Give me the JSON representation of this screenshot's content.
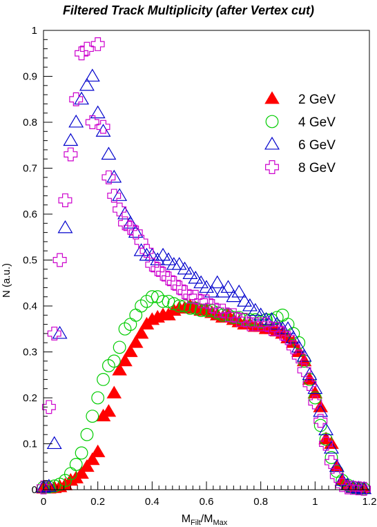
{
  "chart_data": {
    "type": "scatter",
    "title": "Filtered Track Multiplicity (after Vertex cut)",
    "xlabel": {
      "main": "M",
      "sub1": "Filt",
      "mid": "/M",
      "sub2": "Max"
    },
    "ylabel": "N (a.u.)",
    "xlim": [
      0,
      1.2
    ],
    "ylim": [
      0,
      1
    ],
    "xticks": [
      "0",
      "0.2",
      "0.4",
      "0.6",
      "0.8",
      "1",
      "1.2"
    ],
    "yticks": [
      "0",
      "0.1",
      "0.2",
      "0.3",
      "0.4",
      "0.5",
      "0.6",
      "0.7",
      "0.8",
      "0.9",
      "1"
    ],
    "legend_position": "top-right",
    "grid": false,
    "series": [
      {
        "name": "2 GeV",
        "marker": "filled-triangle",
        "color": "#ff0000",
        "x": [
          0.0,
          0.02,
          0.04,
          0.06,
          0.08,
          0.1,
          0.12,
          0.14,
          0.16,
          0.18,
          0.2,
          0.22,
          0.24,
          0.26,
          0.28,
          0.3,
          0.32,
          0.34,
          0.36,
          0.38,
          0.4,
          0.42,
          0.44,
          0.46,
          0.48,
          0.5,
          0.52,
          0.54,
          0.56,
          0.58,
          0.6,
          0.62,
          0.64,
          0.66,
          0.68,
          0.7,
          0.72,
          0.74,
          0.76,
          0.78,
          0.8,
          0.82,
          0.84,
          0.86,
          0.88,
          0.9,
          0.92,
          0.94,
          0.96,
          0.98,
          1.0,
          1.02,
          1.04,
          1.06,
          1.08,
          1.1,
          1.12,
          1.14,
          1.16,
          1.18
        ],
        "y": [
          0.003,
          0.003,
          0.004,
          0.006,
          0.01,
          0.02,
          0.025,
          0.035,
          0.05,
          0.065,
          0.082,
          0.16,
          0.17,
          0.21,
          0.26,
          0.28,
          0.3,
          0.32,
          0.34,
          0.36,
          0.37,
          0.375,
          0.38,
          0.38,
          0.39,
          0.395,
          0.395,
          0.4,
          0.395,
          0.39,
          0.39,
          0.385,
          0.38,
          0.375,
          0.38,
          0.37,
          0.365,
          0.36,
          0.36,
          0.355,
          0.355,
          0.35,
          0.35,
          0.345,
          0.34,
          0.33,
          0.32,
          0.3,
          0.28,
          0.24,
          0.21,
          0.18,
          0.11,
          0.1,
          0.05,
          0.02,
          0.01,
          0.004,
          0.003,
          0.002
        ]
      },
      {
        "name": "4 GeV",
        "marker": "open-circle",
        "color": "#00cc00",
        "x": [
          0.0,
          0.02,
          0.04,
          0.06,
          0.08,
          0.1,
          0.12,
          0.14,
          0.16,
          0.18,
          0.2,
          0.22,
          0.24,
          0.26,
          0.28,
          0.3,
          0.32,
          0.34,
          0.36,
          0.38,
          0.4,
          0.42,
          0.44,
          0.46,
          0.48,
          0.5,
          0.52,
          0.54,
          0.56,
          0.58,
          0.6,
          0.62,
          0.64,
          0.66,
          0.68,
          0.7,
          0.72,
          0.74,
          0.76,
          0.78,
          0.8,
          0.82,
          0.84,
          0.86,
          0.88,
          0.9,
          0.92,
          0.94,
          0.96,
          0.98,
          1.0,
          1.02,
          1.04,
          1.06,
          1.08,
          1.1,
          1.12,
          1.14,
          1.16,
          1.18
        ],
        "y": [
          0.005,
          0.006,
          0.008,
          0.012,
          0.02,
          0.035,
          0.055,
          0.08,
          0.12,
          0.16,
          0.2,
          0.24,
          0.27,
          0.28,
          0.31,
          0.35,
          0.36,
          0.38,
          0.4,
          0.41,
          0.42,
          0.42,
          0.41,
          0.41,
          0.405,
          0.4,
          0.4,
          0.395,
          0.395,
          0.39,
          0.39,
          0.39,
          0.385,
          0.38,
          0.38,
          0.375,
          0.375,
          0.37,
          0.37,
          0.37,
          0.365,
          0.37,
          0.37,
          0.375,
          0.38,
          0.36,
          0.34,
          0.32,
          0.28,
          0.24,
          0.2,
          0.14,
          0.11,
          0.07,
          0.04,
          0.02,
          0.01,
          0.005,
          0.003,
          0.002
        ]
      },
      {
        "name": "6 GeV",
        "marker": "open-triangle",
        "color": "#0000cc",
        "x": [
          0.0,
          0.02,
          0.04,
          0.06,
          0.08,
          0.1,
          0.12,
          0.14,
          0.16,
          0.18,
          0.2,
          0.22,
          0.24,
          0.26,
          0.28,
          0.3,
          0.32,
          0.34,
          0.36,
          0.38,
          0.4,
          0.42,
          0.44,
          0.46,
          0.48,
          0.5,
          0.52,
          0.54,
          0.56,
          0.58,
          0.6,
          0.62,
          0.64,
          0.66,
          0.68,
          0.7,
          0.72,
          0.74,
          0.76,
          0.78,
          0.8,
          0.82,
          0.84,
          0.86,
          0.88,
          0.9,
          0.92,
          0.94,
          0.96,
          0.98,
          1.0,
          1.02,
          1.04,
          1.06,
          1.08,
          1.1,
          1.12,
          1.14,
          1.16,
          1.18
        ],
        "y": [
          0.005,
          0.007,
          0.1,
          0.34,
          0.57,
          0.76,
          0.8,
          0.85,
          0.88,
          0.9,
          0.82,
          0.78,
          0.73,
          0.68,
          0.64,
          0.6,
          0.58,
          0.56,
          0.52,
          0.51,
          0.51,
          0.5,
          0.51,
          0.5,
          0.49,
          0.49,
          0.48,
          0.47,
          0.46,
          0.45,
          0.44,
          0.43,
          0.45,
          0.43,
          0.44,
          0.42,
          0.43,
          0.41,
          0.4,
          0.39,
          0.38,
          0.37,
          0.37,
          0.36,
          0.35,
          0.35,
          0.33,
          0.31,
          0.29,
          0.25,
          0.22,
          0.17,
          0.13,
          0.09,
          0.05,
          0.02,
          0.01,
          0.005,
          0.003,
          0.002
        ]
      },
      {
        "name": "8 GeV",
        "marker": "open-cross",
        "color": "#cc00cc",
        "x": [
          0.0,
          0.02,
          0.04,
          0.06,
          0.08,
          0.1,
          0.12,
          0.14,
          0.16,
          0.18,
          0.2,
          0.22,
          0.24,
          0.26,
          0.28,
          0.3,
          0.32,
          0.34,
          0.36,
          0.38,
          0.4,
          0.42,
          0.44,
          0.46,
          0.48,
          0.5,
          0.52,
          0.54,
          0.56,
          0.58,
          0.6,
          0.62,
          0.64,
          0.66,
          0.68,
          0.7,
          0.72,
          0.74,
          0.76,
          0.78,
          0.8,
          0.82,
          0.84,
          0.86,
          0.88,
          0.9,
          0.92,
          0.94,
          0.96,
          0.98,
          1.0,
          1.02,
          1.04,
          1.06,
          1.08,
          1.1,
          1.12,
          1.14,
          1.16,
          1.18
        ],
        "y": [
          0.005,
          0.18,
          0.34,
          0.5,
          0.63,
          0.73,
          0.85,
          0.95,
          0.96,
          0.8,
          0.97,
          0.79,
          0.68,
          0.64,
          0.61,
          0.58,
          0.57,
          0.56,
          0.54,
          0.52,
          0.49,
          0.48,
          0.47,
          0.46,
          0.45,
          0.44,
          0.43,
          0.42,
          0.42,
          0.41,
          0.41,
          0.4,
          0.39,
          0.39,
          0.38,
          0.38,
          0.37,
          0.37,
          0.36,
          0.36,
          0.36,
          0.36,
          0.35,
          0.35,
          0.34,
          0.33,
          0.31,
          0.29,
          0.26,
          0.23,
          0.19,
          0.15,
          0.1,
          0.06,
          0.03,
          0.01,
          0.005,
          0.004,
          0.003,
          0.002
        ]
      }
    ]
  }
}
